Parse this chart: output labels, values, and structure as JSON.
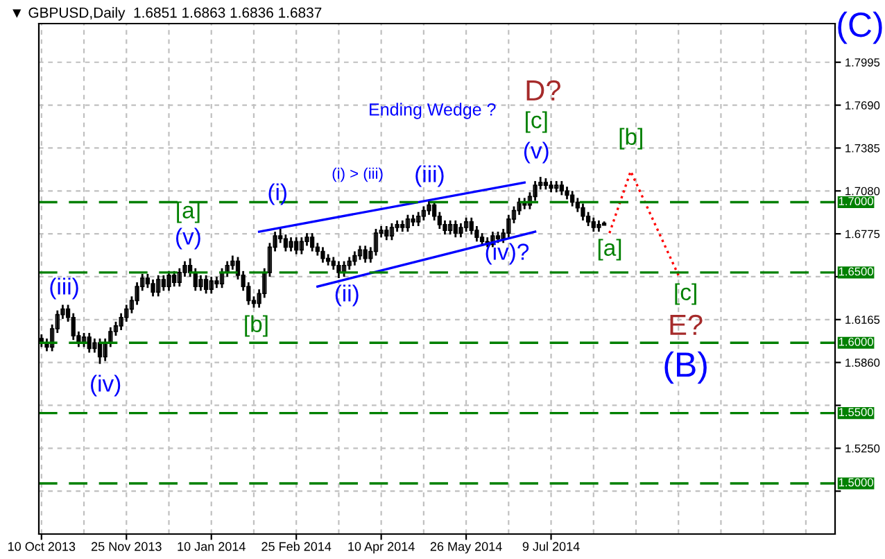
{
  "chart_data": {
    "type": "candlestick",
    "title": "▼ GBPUSD,Daily  1.6851 1.6863 1.6836 1.6837",
    "categories": [
      "10 Oct 2013",
      null,
      null,
      null,
      null,
      null,
      null,
      null,
      null,
      null,
      null,
      null,
      null,
      null,
      null,
      null,
      "25 Nov 2013",
      null,
      null,
      null,
      null,
      null,
      null,
      null,
      null,
      null,
      null,
      null,
      null,
      null,
      null,
      null,
      "10 Jan 2014",
      null,
      null,
      null,
      null,
      null,
      null,
      null,
      null,
      null,
      null,
      null,
      null,
      null,
      null,
      null,
      "25 Feb 2014",
      null,
      null,
      null,
      null,
      null,
      null,
      null,
      null,
      null,
      null,
      null,
      null,
      null,
      null,
      null,
      "10 Apr 2014",
      null,
      null,
      null,
      null,
      null,
      null,
      null,
      null,
      null,
      null,
      null,
      null,
      null,
      null,
      null,
      "26 May 2014",
      null,
      null,
      null,
      null,
      null,
      null,
      null,
      null,
      null,
      null,
      null,
      null,
      null,
      null,
      null,
      "9 Jul 2014",
      null,
      null,
      null,
      null,
      null,
      null,
      null,
      null,
      null,
      null,
      null,
      null,
      null,
      null,
      null,
      null,
      null,
      null,
      null,
      null,
      null,
      null,
      null,
      null,
      null,
      null,
      null,
      null,
      null,
      null,
      null,
      null,
      null,
      null,
      null,
      null,
      null,
      null,
      null,
      null,
      null,
      null,
      null,
      null,
      null,
      null,
      null,
      null,
      null,
      null,
      null,
      null,
      null
    ],
    "ohlc": [
      [
        1.603,
        1.606,
        1.597,
        1.6
      ],
      [
        1.6,
        1.603,
        1.594,
        1.597
      ],
      [
        1.597,
        1.613,
        1.594,
        1.61
      ],
      [
        1.61,
        1.623,
        1.607,
        1.62
      ],
      [
        1.62,
        1.627,
        1.617,
        1.624
      ],
      [
        1.624,
        1.627,
        1.615,
        1.618
      ],
      [
        1.618,
        1.621,
        1.602,
        1.605
      ],
      [
        1.605,
        1.608,
        1.597,
        1.6
      ],
      [
        1.6,
        1.607,
        1.597,
        1.604
      ],
      [
        1.604,
        1.607,
        1.593,
        1.596
      ],
      [
        1.596,
        1.603,
        1.593,
        1.6
      ],
      [
        1.6,
        1.603,
        1.585,
        1.59
      ],
      [
        1.59,
        1.603,
        1.587,
        1.6
      ],
      [
        1.6,
        1.611,
        1.597,
        1.608
      ],
      [
        1.608,
        1.615,
        1.605,
        1.612
      ],
      [
        1.612,
        1.621,
        1.609,
        1.618
      ],
      [
        1.618,
        1.627,
        1.615,
        1.624
      ],
      [
        1.624,
        1.633,
        1.621,
        1.63
      ],
      [
        1.63,
        1.643,
        1.627,
        1.64
      ],
      [
        1.64,
        1.649,
        1.637,
        1.646
      ],
      [
        1.646,
        1.649,
        1.639,
        1.642
      ],
      [
        1.642,
        1.645,
        1.633,
        1.636
      ],
      [
        1.636,
        1.648,
        1.633,
        1.645
      ],
      [
        1.645,
        1.648,
        1.637,
        1.64
      ],
      [
        1.64,
        1.651,
        1.637,
        1.648
      ],
      [
        1.648,
        1.651,
        1.64,
        1.643
      ],
      [
        1.643,
        1.653,
        1.64,
        1.65
      ],
      [
        1.65,
        1.658,
        1.647,
        1.655
      ],
      [
        1.655,
        1.66,
        1.647,
        1.65
      ],
      [
        1.65,
        1.653,
        1.637,
        1.64
      ],
      [
        1.64,
        1.648,
        1.637,
        1.645
      ],
      [
        1.645,
        1.648,
        1.635,
        1.638
      ],
      [
        1.638,
        1.647,
        1.635,
        1.644
      ],
      [
        1.644,
        1.647,
        1.639,
        1.642
      ],
      [
        1.642,
        1.653,
        1.639,
        1.65
      ],
      [
        1.65,
        1.658,
        1.647,
        1.655
      ],
      [
        1.655,
        1.662,
        1.652,
        1.658
      ],
      [
        1.658,
        1.661,
        1.645,
        1.648
      ],
      [
        1.648,
        1.651,
        1.637,
        1.64
      ],
      [
        1.64,
        1.643,
        1.627,
        1.63
      ],
      [
        1.63,
        1.633,
        1.625,
        1.628
      ],
      [
        1.628,
        1.638,
        1.625,
        1.635
      ],
      [
        1.635,
        1.653,
        1.632,
        1.65
      ],
      [
        1.65,
        1.671,
        1.647,
        1.668
      ],
      [
        1.668,
        1.679,
        1.665,
        1.676
      ],
      [
        1.676,
        1.681,
        1.671,
        1.674
      ],
      [
        1.674,
        1.677,
        1.665,
        1.668
      ],
      [
        1.668,
        1.675,
        1.665,
        1.672
      ],
      [
        1.672,
        1.675,
        1.663,
        1.666
      ],
      [
        1.666,
        1.675,
        1.663,
        1.672
      ],
      [
        1.672,
        1.678,
        1.669,
        1.675
      ],
      [
        1.675,
        1.678,
        1.665,
        1.668
      ],
      [
        1.668,
        1.671,
        1.662,
        1.665
      ],
      [
        1.665,
        1.668,
        1.657,
        1.66
      ],
      [
        1.66,
        1.663,
        1.655,
        1.658
      ],
      [
        1.658,
        1.661,
        1.652,
        1.655
      ],
      [
        1.655,
        1.658,
        1.646,
        1.65
      ],
      [
        1.65,
        1.658,
        1.647,
        1.655
      ],
      [
        1.655,
        1.661,
        1.652,
        1.658
      ],
      [
        1.658,
        1.665,
        1.655,
        1.662
      ],
      [
        1.662,
        1.669,
        1.659,
        1.666
      ],
      [
        1.666,
        1.669,
        1.657,
        1.66
      ],
      [
        1.66,
        1.668,
        1.657,
        1.665
      ],
      [
        1.665,
        1.681,
        1.662,
        1.678
      ],
      [
        1.678,
        1.683,
        1.675,
        1.68
      ],
      [
        1.68,
        1.683,
        1.673,
        1.676
      ],
      [
        1.676,
        1.685,
        1.673,
        1.682
      ],
      [
        1.682,
        1.687,
        1.679,
        1.684
      ],
      [
        1.684,
        1.687,
        1.679,
        1.682
      ],
      [
        1.682,
        1.691,
        1.679,
        1.688
      ],
      [
        1.688,
        1.691,
        1.683,
        1.686
      ],
      [
        1.686,
        1.693,
        1.683,
        1.69
      ],
      [
        1.69,
        1.697,
        1.687,
        1.694
      ],
      [
        1.694,
        1.701,
        1.691,
        1.698
      ],
      [
        1.698,
        1.7,
        1.687,
        1.69
      ],
      [
        1.69,
        1.693,
        1.681,
        1.684
      ],
      [
        1.684,
        1.687,
        1.677,
        1.68
      ],
      [
        1.68,
        1.687,
        1.677,
        1.684
      ],
      [
        1.684,
        1.687,
        1.675,
        1.678
      ],
      [
        1.678,
        1.685,
        1.675,
        1.682
      ],
      [
        1.682,
        1.689,
        1.679,
        1.686
      ],
      [
        1.686,
        1.689,
        1.677,
        1.68
      ],
      [
        1.68,
        1.683,
        1.672,
        1.675
      ],
      [
        1.675,
        1.678,
        1.669,
        1.672
      ],
      [
        1.672,
        1.675,
        1.668,
        1.67
      ],
      [
        1.67,
        1.679,
        1.668,
        1.676
      ],
      [
        1.676,
        1.679,
        1.671,
        1.674
      ],
      [
        1.674,
        1.681,
        1.671,
        1.678
      ],
      [
        1.678,
        1.691,
        1.675,
        1.688
      ],
      [
        1.688,
        1.697,
        1.685,
        1.694
      ],
      [
        1.694,
        1.703,
        1.691,
        1.7
      ],
      [
        1.7,
        1.703,
        1.695,
        1.698
      ],
      [
        1.698,
        1.707,
        1.695,
        1.704
      ],
      [
        1.704,
        1.715,
        1.701,
        1.712
      ],
      [
        1.712,
        1.718,
        1.709,
        1.714
      ],
      [
        1.714,
        1.717,
        1.709,
        1.712
      ],
      [
        1.712,
        1.715,
        1.707,
        1.71
      ],
      [
        1.71,
        1.715,
        1.707,
        1.712
      ],
      [
        1.712,
        1.715,
        1.705,
        1.708
      ],
      [
        1.708,
        1.711,
        1.702,
        1.705
      ],
      [
        1.705,
        1.708,
        1.697,
        1.7
      ],
      [
        1.7,
        1.703,
        1.693,
        1.696
      ],
      [
        1.696,
        1.699,
        1.687,
        1.69
      ],
      [
        1.69,
        1.693,
        1.683,
        1.686
      ],
      [
        1.686,
        1.689,
        1.679,
        1.682
      ],
      [
        1.682,
        1.687,
        1.679,
        1.684
      ],
      [
        1.6851,
        1.6863,
        1.6836,
        1.6837
      ],
      null,
      null,
      null,
      null,
      null,
      null,
      null,
      null,
      null,
      null,
      null,
      null,
      null,
      null,
      null,
      null,
      null,
      null,
      null,
      null,
      null,
      null,
      null,
      null,
      null,
      null,
      null,
      null,
      null,
      null,
      null,
      null,
      null,
      null,
      null,
      null,
      null,
      null,
      null,
      null,
      null,
      null,
      null
    ],
    "color": "#000000",
    "series": [
      {
        "type": "line",
        "color": "#0000ff",
        "line_style": "solid",
        "values": [
          null,
          null,
          null,
          null,
          null,
          null,
          null,
          null,
          null,
          null,
          null,
          null,
          null,
          null,
          null,
          null,
          null,
          null,
          null,
          null,
          null,
          null,
          null,
          null,
          null,
          null,
          null,
          null,
          null,
          null,
          null,
          null,
          null,
          null,
          null,
          null,
          null,
          null,
          null,
          null,
          null,
          1.679,
          null,
          null,
          null,
          null,
          null,
          null,
          null,
          null,
          null,
          null,
          null,
          null,
          null,
          null,
          null,
          null,
          null,
          null,
          null,
          null,
          null,
          null,
          null,
          null,
          null,
          null,
          null,
          null,
          null,
          null,
          null,
          null,
          null,
          null,
          null,
          null,
          null,
          null,
          null,
          null,
          null,
          null,
          null,
          null,
          null,
          null,
          null,
          null,
          null,
          1.714,
          null,
          null,
          null,
          null,
          null,
          null,
          null,
          null,
          null,
          null,
          null,
          null,
          null,
          null,
          null,
          null,
          null,
          null,
          null,
          null,
          null,
          null,
          null,
          null,
          null,
          null,
          null,
          null,
          null,
          null,
          null,
          null,
          null,
          null,
          null,
          null,
          null,
          null,
          null,
          null,
          null,
          null,
          null,
          null,
          null,
          null,
          null,
          null,
          null,
          null,
          null,
          null,
          null,
          null,
          null,
          null,
          null,
          null
        ]
      },
      {
        "type": "line",
        "color": "#0000ff",
        "line_style": "solid",
        "values": [
          null,
          null,
          null,
          null,
          null,
          null,
          null,
          null,
          null,
          null,
          null,
          null,
          null,
          null,
          null,
          null,
          null,
          null,
          null,
          null,
          null,
          null,
          null,
          null,
          null,
          null,
          null,
          null,
          null,
          null,
          null,
          null,
          null,
          null,
          null,
          null,
          null,
          null,
          null,
          null,
          null,
          null,
          null,
          null,
          null,
          null,
          null,
          null,
          null,
          null,
          null,
          null,
          1.64,
          null,
          null,
          null,
          null,
          null,
          null,
          null,
          null,
          null,
          null,
          null,
          null,
          null,
          null,
          null,
          null,
          null,
          null,
          null,
          null,
          null,
          null,
          null,
          null,
          null,
          null,
          null,
          null,
          null,
          null,
          null,
          null,
          null,
          null,
          null,
          null,
          null,
          null,
          null,
          null,
          1.679,
          null,
          null,
          null,
          null,
          null,
          null,
          null,
          null,
          null,
          null,
          null,
          null,
          null,
          null,
          null,
          null,
          null,
          null,
          null,
          null,
          null,
          null,
          null,
          null,
          null,
          null,
          null,
          null,
          null,
          null,
          null,
          null,
          null,
          null,
          null,
          null,
          null,
          null,
          null,
          null,
          null,
          null,
          null,
          null,
          null,
          null,
          null,
          null,
          null,
          null,
          null,
          null,
          null,
          null,
          null,
          null
        ]
      },
      {
        "type": "line",
        "color": "#ff0000",
        "line_style": "dotted",
        "values": [
          null,
          null,
          null,
          null,
          null,
          null,
          null,
          null,
          null,
          null,
          null,
          null,
          null,
          null,
          null,
          null,
          null,
          null,
          null,
          null,
          null,
          null,
          null,
          null,
          null,
          null,
          null,
          null,
          null,
          null,
          null,
          null,
          null,
          null,
          null,
          null,
          null,
          null,
          null,
          null,
          null,
          null,
          null,
          null,
          null,
          null,
          null,
          null,
          null,
          null,
          null,
          null,
          null,
          null,
          null,
          null,
          null,
          null,
          null,
          null,
          null,
          null,
          null,
          null,
          null,
          null,
          null,
          null,
          null,
          null,
          null,
          null,
          null,
          null,
          null,
          null,
          null,
          null,
          null,
          null,
          null,
          null,
          null,
          null,
          null,
          null,
          null,
          null,
          null,
          null,
          null,
          null,
          null,
          null,
          null,
          null,
          null,
          null,
          null,
          null,
          null,
          null,
          null,
          null,
          null,
          null,
          null,
          1.678,
          null,
          null,
          null,
          1.722,
          null,
          null,
          null,
          null,
          null,
          null,
          null,
          null,
          1.648,
          null,
          null,
          null,
          null,
          null,
          null,
          null,
          null,
          null,
          null,
          null,
          null,
          null,
          null,
          null,
          null,
          null,
          null,
          null,
          null,
          null,
          null,
          null,
          null,
          null,
          null,
          null,
          null,
          null
        ]
      }
    ],
    "ylim": [
      1.464,
      1.827
    ],
    "yticks": [
      {
        "value": 1.7995,
        "label": "1.7995"
      },
      {
        "value": 1.769,
        "label": "1.7690"
      },
      {
        "value": 1.7385,
        "label": "1.7385"
      },
      {
        "value": 1.708,
        "label": "1.7080"
      },
      {
        "value": 1.6775,
        "label": "1.6775"
      },
      {
        "value": 1.647,
        "label": null
      },
      {
        "value": 1.6165,
        "label": "1.6165"
      },
      {
        "value": 1.586,
        "label": "1.5860"
      },
      {
        "value": 1.5555,
        "label": null
      },
      {
        "value": 1.525,
        "label": "1.5250"
      },
      {
        "value": 1.4945,
        "label": null
      }
    ],
    "ref_lines": [
      {
        "axis": "y",
        "value": 1.7,
        "label": "1.7000",
        "color": "#008000",
        "line_style": "dashed"
      },
      {
        "axis": "y",
        "value": 1.65,
        "label": "1.6500",
        "color": "#008000",
        "line_style": "dashed"
      },
      {
        "axis": "y",
        "value": 1.6,
        "label": "1.6000",
        "color": "#008000",
        "line_style": "dashed"
      },
      {
        "axis": "y",
        "value": 1.55,
        "label": "1.5500",
        "color": "#008000",
        "line_style": "dashed"
      },
      {
        "axis": "y",
        "value": 1.5,
        "label": "1.5000",
        "color": "#008000",
        "line_style": "dashed"
      }
    ],
    "annotations": [
      "(C)",
      "Ending Wedge ?",
      "D?",
      "[c]",
      "(v)",
      "[b]",
      "(iii)",
      "(i) > (iii)",
      "(i)",
      "[a]",
      "(v)",
      "(iii)",
      "(iv)",
      "[b]",
      "(ii)",
      "(iv)?",
      "[a]",
      "[c]",
      "E?",
      "(B)"
    ],
    "grid": true,
    "legend": false
  }
}
